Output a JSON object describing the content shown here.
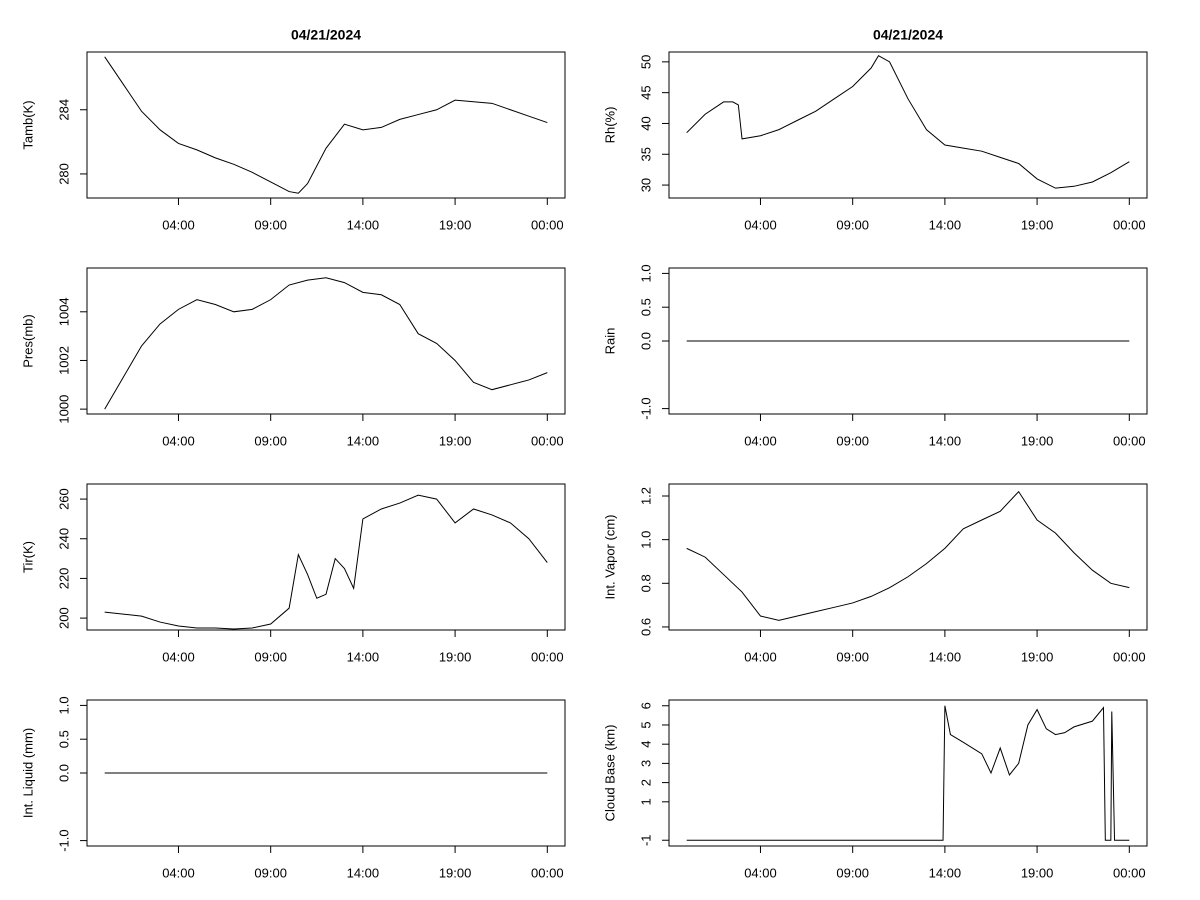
{
  "chart_data": [
    {
      "type": "line",
      "title": "04/21/2024",
      "ylabel": "Tamb(K)",
      "color": "#000000",
      "x": [
        0,
        1,
        2,
        3,
        4,
        5,
        6,
        7,
        8,
        9,
        10,
        10.5,
        11,
        12,
        13,
        14,
        15,
        16,
        17,
        18,
        19,
        20,
        21,
        22,
        23,
        24
      ],
      "values": [
        287.3,
        285.6,
        283.9,
        282.75,
        281.9,
        281.5,
        281.0,
        280.6,
        280.1,
        279.5,
        278.9,
        278.8,
        279.4,
        281.6,
        283.1,
        282.75,
        282.9,
        283.4,
        283.7,
        284.0,
        284.6,
        284.5,
        284.4,
        284.0,
        283.6,
        283.2
      ],
      "xlim": [
        -0.96,
        24.96
      ],
      "xticks": [
        {
          "value": 4,
          "label": "04:00"
        },
        {
          "value": 9,
          "label": "09:00"
        },
        {
          "value": 14,
          "label": "14:00"
        },
        {
          "value": 19,
          "label": "19:00"
        },
        {
          "value": 24,
          "label": "00:00"
        }
      ],
      "ylim": [
        278.5,
        287.6
      ],
      "yticks": [
        280,
        284
      ]
    },
    {
      "type": "line",
      "title": "04/21/2024",
      "ylabel": "Rh(%)",
      "color": "#000000",
      "x": [
        0,
        1,
        2,
        2.5,
        2.8,
        3,
        4,
        5,
        6,
        7,
        8,
        9,
        10,
        10.4,
        11,
        12,
        13,
        14,
        15,
        16,
        17,
        18,
        19,
        20,
        21,
        22,
        23,
        24
      ],
      "values": [
        38.5,
        41.5,
        43.5,
        43.5,
        43,
        37.5,
        38,
        39,
        40.5,
        42,
        44,
        46,
        49,
        51,
        50,
        44,
        39,
        36.5,
        36,
        35.5,
        34.5,
        33.5,
        31,
        29.5,
        29.8,
        30.5,
        32,
        33.8
      ],
      "xlim": [
        -0.96,
        24.96
      ],
      "xticks": [
        {
          "value": 4,
          "label": "04:00"
        },
        {
          "value": 9,
          "label": "09:00"
        },
        {
          "value": 14,
          "label": "14:00"
        },
        {
          "value": 19,
          "label": "19:00"
        },
        {
          "value": 24,
          "label": "00:00"
        }
      ],
      "ylim": [
        27.9,
        51.6
      ],
      "yticks": [
        30,
        35,
        40,
        45,
        50
      ]
    },
    {
      "type": "line",
      "ylabel": "Pres(mb)",
      "color": "#000000",
      "x": [
        0,
        1,
        2,
        3,
        4,
        5,
        6,
        7,
        8,
        9,
        10,
        11,
        12,
        13,
        14,
        15,
        16,
        17,
        18,
        19,
        20,
        21,
        22,
        23,
        24
      ],
      "values": [
        1000.0,
        1001.3,
        1002.6,
        1003.5,
        1004.1,
        1004.5,
        1004.3,
        1004.0,
        1004.1,
        1004.5,
        1005.1,
        1005.3,
        1005.4,
        1005.2,
        1004.8,
        1004.7,
        1004.3,
        1003.1,
        1002.7,
        1002.0,
        1001.1,
        1000.8,
        1001.0,
        1001.2,
        1001.5
      ],
      "xlim": [
        -0.96,
        24.96
      ],
      "xticks": [
        {
          "value": 4,
          "label": "04:00"
        },
        {
          "value": 9,
          "label": "09:00"
        },
        {
          "value": 14,
          "label": "14:00"
        },
        {
          "value": 19,
          "label": "19:00"
        },
        {
          "value": 24,
          "label": "00:00"
        }
      ],
      "ylim": [
        999.8,
        1005.8
      ],
      "yticks": [
        1000,
        1002,
        1004
      ]
    },
    {
      "type": "line",
      "ylabel": "Rain",
      "color": "#000000",
      "x": [
        0,
        24
      ],
      "values": [
        0,
        0
      ],
      "xlim": [
        -0.96,
        24.96
      ],
      "xticks": [
        {
          "value": 4,
          "label": "04:00"
        },
        {
          "value": 9,
          "label": "09:00"
        },
        {
          "value": 14,
          "label": "14:00"
        },
        {
          "value": 19,
          "label": "19:00"
        },
        {
          "value": 24,
          "label": "00:00"
        }
      ],
      "ylim": [
        -1.08,
        1.08
      ],
      "yticks": [
        {
          "value": -1,
          "label": "-1.0"
        },
        {
          "value": 0,
          "label": "0.0"
        },
        {
          "value": 0.5,
          "label": "0.5"
        },
        {
          "value": 1,
          "label": "1.0"
        }
      ]
    },
    {
      "type": "line",
      "ylabel": "Tir(K)",
      "color": "#000000",
      "x": [
        0,
        1,
        2,
        3,
        4,
        5,
        6,
        7,
        8,
        9,
        10,
        10.5,
        11,
        11.5,
        12,
        12.5,
        13,
        13.5,
        14,
        15,
        16,
        17,
        18,
        19,
        20,
        21,
        22,
        23,
        24
      ],
      "values": [
        203,
        202,
        201,
        198,
        196,
        195,
        195,
        194.5,
        195,
        197,
        205,
        232,
        222,
        210,
        212,
        230,
        225,
        215,
        250,
        255,
        258,
        262,
        260,
        248,
        255,
        252,
        248,
        240,
        228
      ],
      "xlim": [
        -0.96,
        24.96
      ],
      "xticks": [
        {
          "value": 4,
          "label": "04:00"
        },
        {
          "value": 9,
          "label": "09:00"
        },
        {
          "value": 14,
          "label": "14:00"
        },
        {
          "value": 19,
          "label": "19:00"
        },
        {
          "value": 24,
          "label": "00:00"
        }
      ],
      "ylim": [
        194,
        267.6
      ],
      "yticks": [
        200,
        220,
        240,
        260
      ]
    },
    {
      "type": "line",
      "ylabel": "Int. Vapor (cm)",
      "color": "#000000",
      "x": [
        0,
        1,
        2,
        3,
        4,
        5,
        6,
        7,
        8,
        9,
        10,
        11,
        12,
        13,
        14,
        15,
        16,
        17,
        18,
        19,
        20,
        21,
        22,
        23,
        24
      ],
      "values": [
        0.96,
        0.92,
        0.84,
        0.76,
        0.65,
        0.63,
        0.65,
        0.67,
        0.69,
        0.71,
        0.74,
        0.78,
        0.83,
        0.89,
        0.96,
        1.05,
        1.09,
        1.13,
        1.22,
        1.09,
        1.03,
        0.94,
        0.86,
        0.8,
        0.78
      ],
      "xlim": [
        -0.96,
        24.96
      ],
      "xticks": [
        {
          "value": 4,
          "label": "04:00"
        },
        {
          "value": 9,
          "label": "09:00"
        },
        {
          "value": 14,
          "label": "14:00"
        },
        {
          "value": 19,
          "label": "19:00"
        },
        {
          "value": 24,
          "label": "00:00"
        }
      ],
      "ylim": [
        0.586,
        1.255
      ],
      "yticks": [
        0.6,
        0.8,
        {
          "value": 1,
          "label": "1.0"
        },
        1.2
      ]
    },
    {
      "type": "line",
      "ylabel": "Int. Liquid (mm)",
      "color": "#000000",
      "x": [
        0,
        24
      ],
      "values": [
        0,
        0
      ],
      "xlim": [
        -0.96,
        24.96
      ],
      "xticks": [
        {
          "value": 4,
          "label": "04:00"
        },
        {
          "value": 9,
          "label": "09:00"
        },
        {
          "value": 14,
          "label": "14:00"
        },
        {
          "value": 19,
          "label": "19:00"
        },
        {
          "value": 24,
          "label": "00:00"
        }
      ],
      "ylim": [
        -1.08,
        1.08
      ],
      "yticks": [
        {
          "value": -1,
          "label": "-1.0"
        },
        {
          "value": 0,
          "label": "0.0"
        },
        {
          "value": 0.5,
          "label": "0.5"
        },
        {
          "value": 1,
          "label": "1.0"
        }
      ]
    },
    {
      "type": "line",
      "ylabel": "Cloud Base (km)",
      "color": "#000000",
      "x": [
        0,
        13.9,
        14,
        14.3,
        15,
        16,
        16.5,
        17,
        17.5,
        18,
        18.5,
        19,
        19.5,
        20,
        20.5,
        21,
        22,
        22.6,
        22.7,
        23,
        23.05,
        23.2,
        24
      ],
      "values": [
        -1,
        -1,
        6,
        4.5,
        4.1,
        3.5,
        2.5,
        3.8,
        2.4,
        3.0,
        5.0,
        5.8,
        4.8,
        4.5,
        4.6,
        4.9,
        5.2,
        5.9,
        -1,
        -1,
        5.7,
        -1,
        -1
      ],
      "xlim": [
        -0.96,
        24.96
      ],
      "xticks": [
        {
          "value": 4,
          "label": "04:00"
        },
        {
          "value": 9,
          "label": "09:00"
        },
        {
          "value": 14,
          "label": "14:00"
        },
        {
          "value": 19,
          "label": "19:00"
        },
        {
          "value": 24,
          "label": "00:00"
        }
      ],
      "ylim": [
        -1.3,
        6.3
      ],
      "yticks": [
        -1,
        1,
        2,
        3,
        4,
        5,
        6
      ]
    }
  ]
}
